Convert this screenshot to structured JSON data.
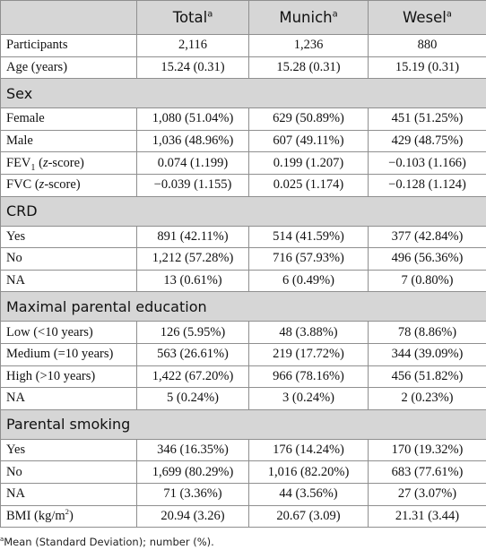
{
  "table": {
    "header": [
      {
        "text": "Total",
        "sup": "a"
      },
      {
        "text": "Munich",
        "sup": "a"
      },
      {
        "text": "Wesel",
        "sup": "a"
      }
    ],
    "rows": [
      {
        "label": "Participants",
        "cells": [
          "2,116",
          "1,236",
          "880"
        ]
      },
      {
        "label": "Age (years)",
        "cells": [
          "15.24 (0.31)",
          "15.28 (0.31)",
          "15.19 (0.31)"
        ]
      },
      {
        "section": "Sex"
      },
      {
        "label": "Female",
        "cells": [
          "1,080 (51.04%)",
          "629 (50.89%)",
          "451 (51.25%)"
        ]
      },
      {
        "label": "Male",
        "cells": [
          "1,036 (48.96%)",
          "607 (49.11%)",
          "429 (48.75%)"
        ]
      },
      {
        "label": [
          {
            "text": "FEV"
          },
          {
            "text": "1",
            "sub": true
          },
          {
            "text": " ("
          },
          {
            "text": "z",
            "italic": true
          },
          {
            "text": "-score)"
          }
        ],
        "cells": [
          "0.074 (1.199)",
          "0.199 (1.207)",
          "−0.103 (1.166)"
        ]
      },
      {
        "label": [
          {
            "text": "FVC ("
          },
          {
            "text": "z",
            "italic": true
          },
          {
            "text": "-score)"
          }
        ],
        "cells": [
          "−0.039 (1.155)",
          "0.025 (1.174)",
          "−0.128 (1.124)"
        ]
      },
      {
        "section": "CRD"
      },
      {
        "label": "Yes",
        "cells": [
          "891 (42.11%)",
          "514 (41.59%)",
          "377 (42.84%)"
        ]
      },
      {
        "label": "No",
        "cells": [
          "1,212 (57.28%)",
          "716 (57.93%)",
          "496 (56.36%)"
        ]
      },
      {
        "label": "NA",
        "cells": [
          "13 (0.61%)",
          "6 (0.49%)",
          "7 (0.80%)"
        ]
      },
      {
        "section": "Maximal parental education"
      },
      {
        "label": "Low (<10 years)",
        "cells": [
          "126 (5.95%)",
          "48 (3.88%)",
          "78 (8.86%)"
        ]
      },
      {
        "label": "Medium (=10 years)",
        "cells": [
          "563 (26.61%)",
          "219 (17.72%)",
          "344 (39.09%)"
        ]
      },
      {
        "label": "High (>10 years)",
        "cells": [
          "1,422 (67.20%)",
          "966 (78.16%)",
          "456 (51.82%)"
        ]
      },
      {
        "label": "NA",
        "cells": [
          "5 (0.24%)",
          "3 (0.24%)",
          "2 (0.23%)"
        ]
      },
      {
        "section": "Parental smoking"
      },
      {
        "label": "Yes",
        "cells": [
          "346 (16.35%)",
          "176 (14.24%)",
          "170 (19.32%)"
        ]
      },
      {
        "label": "No",
        "cells": [
          "1,699 (80.29%)",
          "1,016 (82.20%)",
          "683 (77.61%)"
        ]
      },
      {
        "label": "NA",
        "cells": [
          "71 (3.36%)",
          "44 (3.56%)",
          "27 (3.07%)"
        ]
      },
      {
        "label": [
          {
            "text": "BMI (kg/m"
          },
          {
            "text": "2",
            "sup": true
          },
          {
            "text": ")"
          }
        ],
        "cells": [
          "20.94 (3.26)",
          "20.67 (3.09)",
          "21.31 (3.44)"
        ]
      }
    ],
    "footnote": {
      "sup": "a",
      "text": "Mean (Standard Deviation); number (%)."
    }
  }
}
